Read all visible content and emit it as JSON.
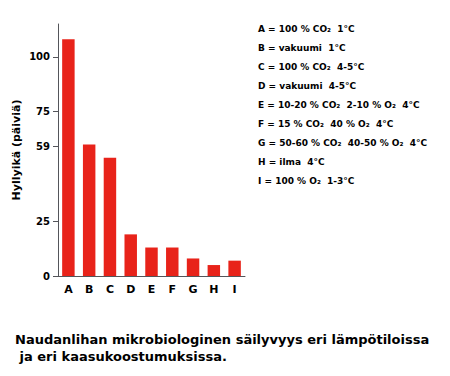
{
  "chart_data": {
    "type": "bar",
    "title": "Naudanlihan mikrobiologinen säilyvyys eri lämpötiloissa ja eri kaasukoostumuksissa.",
    "categories": [
      "A",
      "B",
      "C",
      "D",
      "E",
      "F",
      "G",
      "H",
      "I"
    ],
    "values": [
      108,
      60,
      54,
      19,
      13,
      13,
      8,
      5,
      7
    ],
    "color": "#e8231a",
    "ylabel": "Hyllyikä (päiviä)",
    "ylim": [
      0,
      115
    ],
    "yticks": [
      0,
      25,
      59,
      75,
      100
    ],
    "grid": false,
    "annotations": [
      "A = 100 % CO₂  1°C",
      "B = vakuumi  1°C",
      "C = 100 % CO₂  4-5°C",
      "D = vakuumi  4-5°C",
      "E = 10-20 % CO₂  2-10 % O₂  4°C",
      "F = 15 % CO₂  40 % O₂  4°C",
      "G = 50-60 % CO₂  40-50 % O₂  4°C",
      "H = ilma  4°C",
      "I = 100 % O₂  1-3°C"
    ]
  }
}
